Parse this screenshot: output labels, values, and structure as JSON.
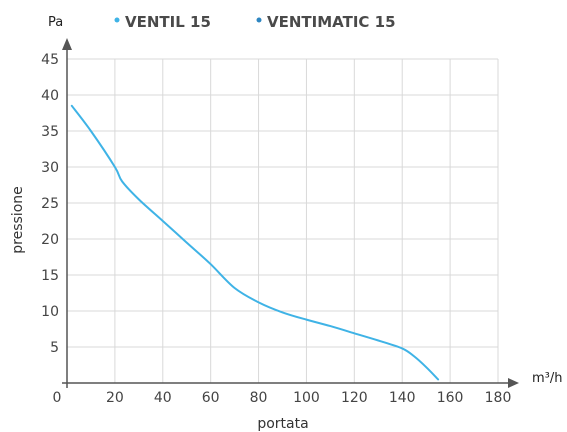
{
  "chart_data": {
    "type": "line",
    "xlabel": "portata",
    "ylabel": "pressione",
    "x_unit": "m³/h",
    "y_unit": "Pa",
    "xlim": [
      0,
      180
    ],
    "ylim": [
      0,
      45
    ],
    "x_ticks": [
      0,
      20,
      40,
      60,
      80,
      100,
      120,
      140,
      160,
      180
    ],
    "y_ticks": [
      5,
      10,
      15,
      20,
      25,
      30,
      35,
      40,
      45
    ],
    "grid": true,
    "legend_position": "top",
    "legend": [
      {
        "name": "VENTIL 15",
        "color": "#3fb3e6"
      },
      {
        "name": "VENTIMATIC 15",
        "color": "#2e86c1"
      }
    ],
    "series": [
      {
        "name": "VENTIL 15",
        "color": "#3fb3e6",
        "x": [
          2,
          10,
          20,
          23,
          30,
          40,
          50,
          60,
          70,
          80,
          90,
          100,
          110,
          120,
          130,
          140,
          145,
          150,
          155
        ],
        "y": [
          38.5,
          35,
          30,
          28,
          25.5,
          22.5,
          19.5,
          16.5,
          13.2,
          11.2,
          9.8,
          8.8,
          7.9,
          6.9,
          5.9,
          4.8,
          3.7,
          2.2,
          0.5
        ]
      }
    ]
  }
}
